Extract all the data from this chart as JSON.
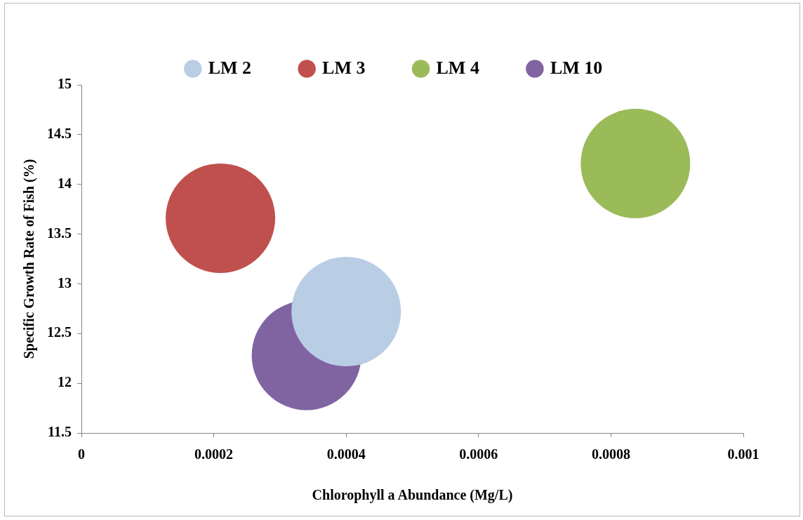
{
  "chart_data": {
    "type": "bubble",
    "xlabel": "Chlorophyll a Abundance (Mg/L)",
    "ylabel": "Specific Growth Rate of Fish (%)",
    "series": [
      {
        "name": "LM 2",
        "color": "#b9cde5",
        "x": [
          0.0004
        ],
        "values": [
          12.72
        ],
        "sizes": [
          1
        ]
      },
      {
        "name": "LM 3",
        "color": "#c0504d",
        "x": [
          0.00021
        ],
        "values": [
          13.66
        ],
        "sizes": [
          1
        ]
      },
      {
        "name": "LM 4",
        "color": "#9bbb59",
        "x": [
          0.000837
        ],
        "values": [
          14.21
        ],
        "sizes": [
          1
        ]
      },
      {
        "name": "LM 10",
        "color": "#8064a2",
        "x": [
          0.00034
        ],
        "values": [
          12.28
        ],
        "sizes": [
          1
        ]
      }
    ],
    "xlim": [
      0,
      0.001
    ],
    "xticks": [
      0,
      0.0002,
      0.0004,
      0.0006,
      0.0008,
      0.001
    ],
    "ylim": [
      11.5,
      15
    ],
    "yticks": [
      11.5,
      12,
      12.5,
      13,
      13.5,
      14,
      14.5,
      15
    ],
    "grid": false,
    "legend": "top"
  }
}
